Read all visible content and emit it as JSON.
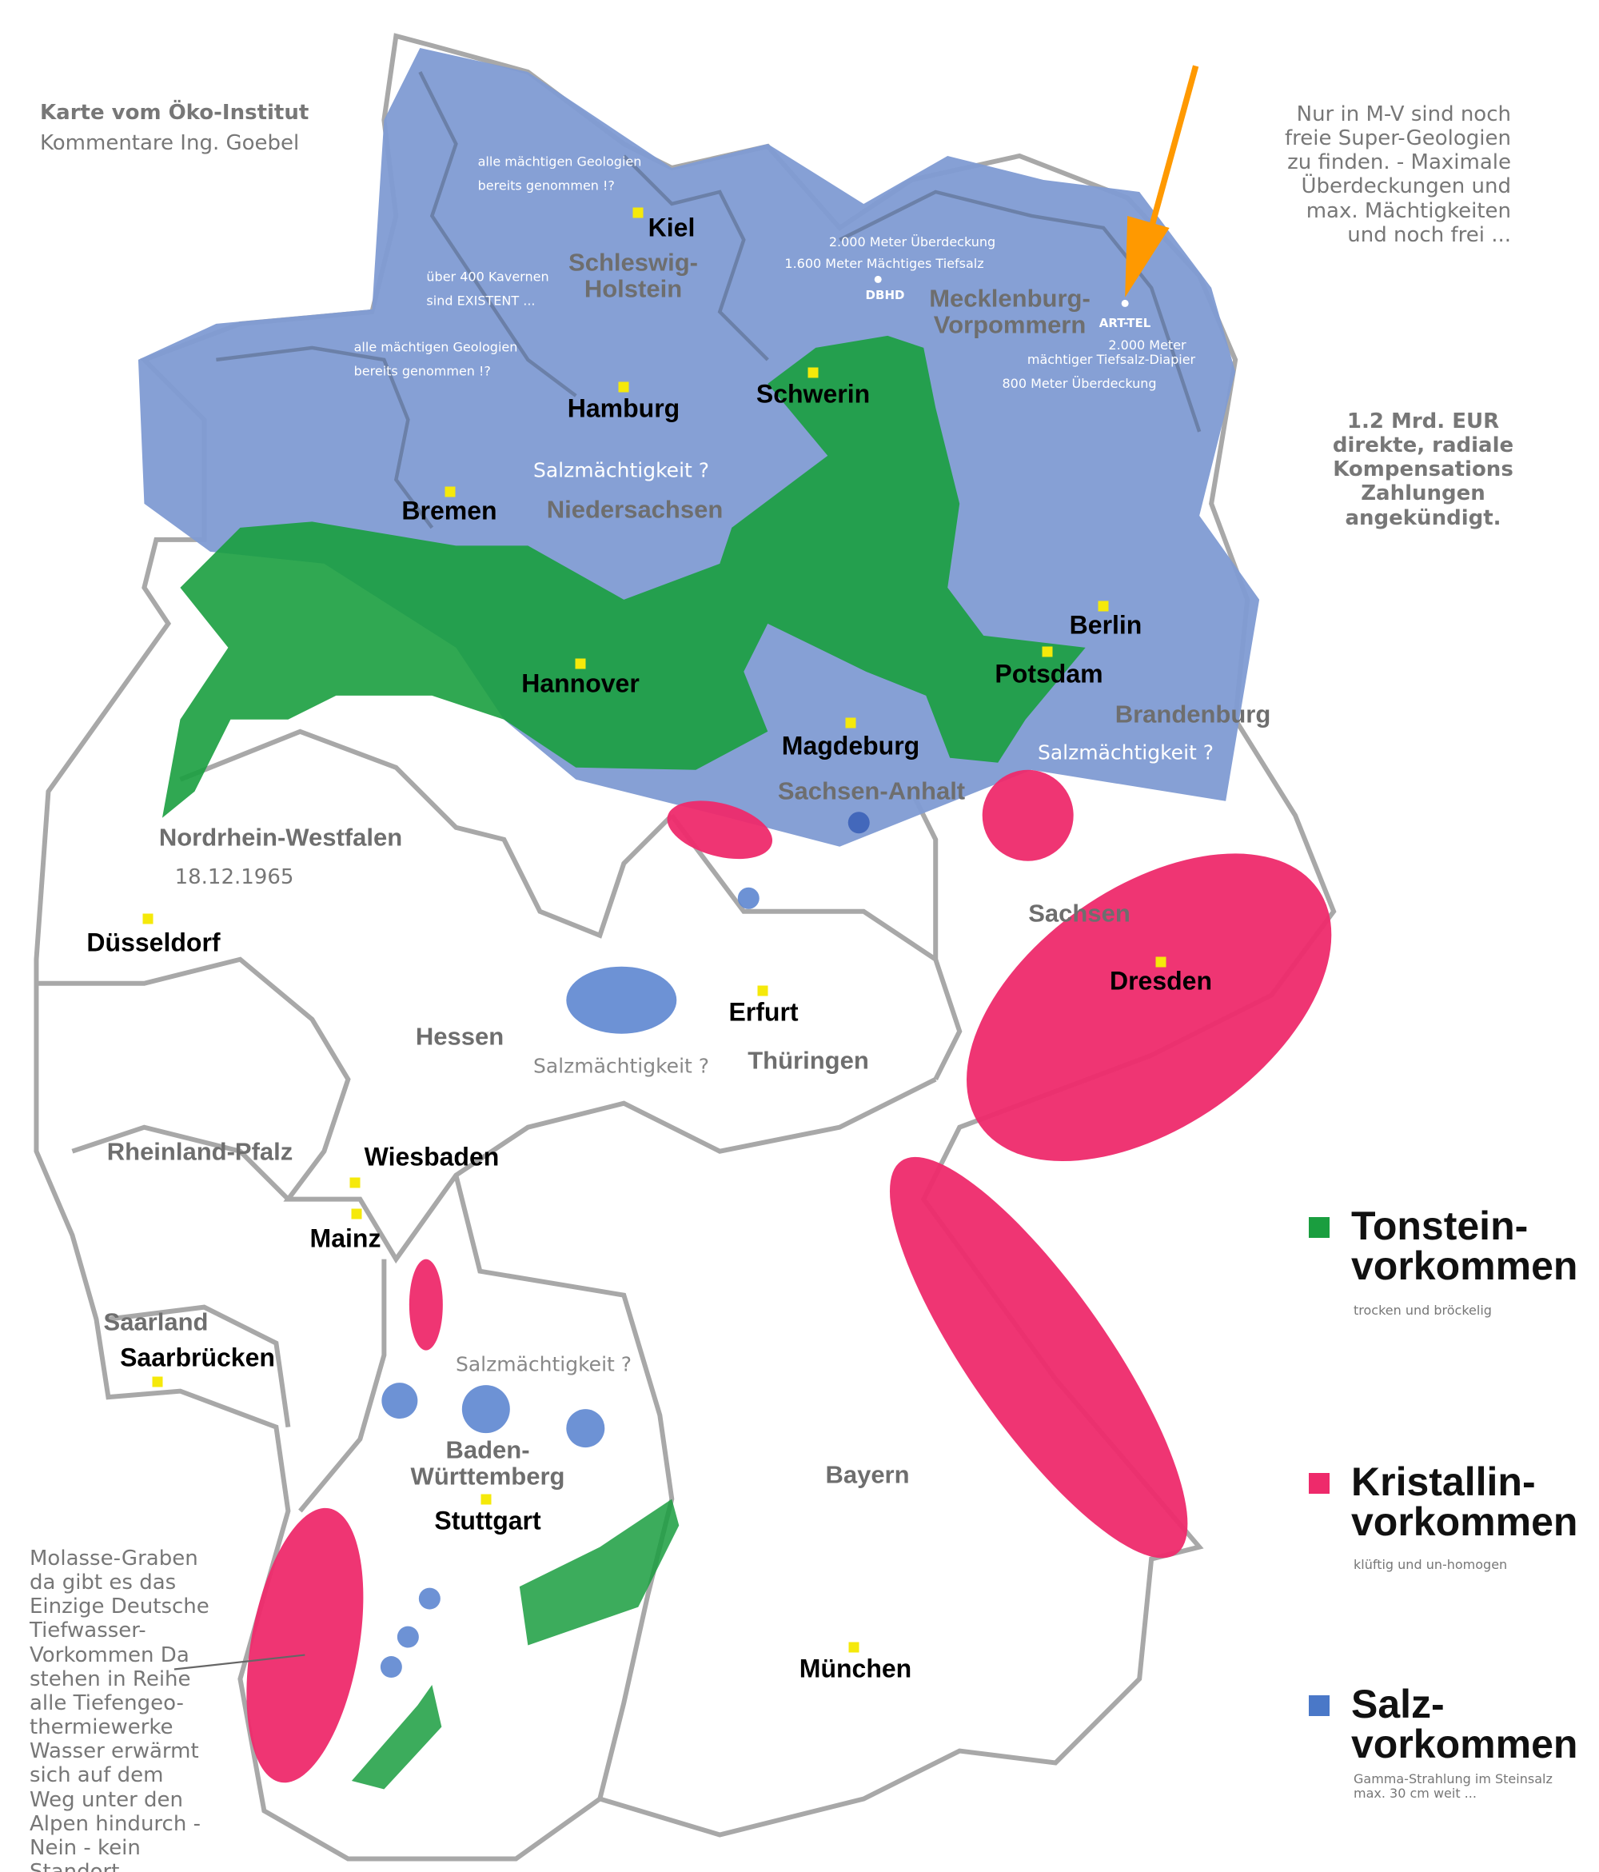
{
  "header": {
    "title": "Karte vom Öko-Institut",
    "subtitle": "Kommentare Ing. Goebel"
  },
  "side_notes": {
    "mv_note": "Nur in M-V sind noch freie Super-Geologien zu finden. - Maximale Überdeckungen und max. Mächtigkeiten und noch frei ...",
    "compensation": "1.2 Mrd. EUR direkte, radiale Kompensations Zahlungen angekündigt.",
    "nrw_date": "18.12.1965",
    "molasse": "Molasse-Graben da gibt es das Einzige Deutsche Tiefwasser-Vorkommen Da stehen in Reihe alle Tiefengeo-thermiewerke Wasser erwärmt sich auf dem Weg unter den Alpen hindurch - Nein - kein Standort"
  },
  "map_comments": {
    "sh_geologien_1": "alle mächtigen Geologien",
    "sh_geologien_2": "bereits genommen !?",
    "kavernen_1": "über 400 Kavernen",
    "kavernen_2": "sind EXISTENT ...",
    "ns_geologien_1": "alle mächtigen Geologien",
    "ns_geologien_2": "bereits genommen !?",
    "dbhd_1": "2.000 Meter Überdeckung",
    "dbhd_2": "1.600 Meter Mächtiges Tiefsalz",
    "dbhd_site": "DBHD",
    "arttel_site": "ART-TEL",
    "arttel_1": "2.000 Meter",
    "arttel_2": "mächtiger Tiefsalz-Diapier",
    "arttel_3": "800 Meter Überdeckung",
    "salz_q_ns": "Salzmächtigkeit ?",
    "salz_q_bb": "Salzmächtigkeit ?",
    "salz_q_he": "Salzmächtigkeit ?",
    "salz_q_bw": "Salzmächtigkeit ?"
  },
  "states": {
    "sh": "Schleswig-\nHolstein",
    "mv": "Mecklenburg-\nVorpommern",
    "ni": "Niedersachsen",
    "bb": "Brandenburg",
    "st": "Sachsen-Anhalt",
    "nw": "Nordrhein-Westfalen",
    "sn": "Sachsen",
    "he": "Hessen",
    "th": "Thüringen",
    "rp": "Rheinland-Pfalz",
    "sl": "Saarland",
    "bw": "Baden-\nWürttemberg",
    "by": "Bayern"
  },
  "cities": {
    "kiel": "Kiel",
    "hamburg": "Hamburg",
    "schwerin": "Schwerin",
    "bremen": "Bremen",
    "hannover": "Hannover",
    "berlin": "Berlin",
    "potsdam": "Potsdam",
    "magdeburg": "Magdeburg",
    "duesseldorf": "Düsseldorf",
    "erfurt": "Erfurt",
    "dresden": "Dresden",
    "wiesbaden": "Wiesbaden",
    "mainz": "Mainz",
    "saarbruecken": "Saarbrücken",
    "stuttgart": "Stuttgart",
    "muenchen": "München"
  },
  "legend": {
    "tonstein": {
      "title": "Tonstein-\nvorkommen",
      "note": "trocken und bröckelig",
      "color": "#1a9e3f"
    },
    "kristallin": {
      "title": "Kristallin-\nvorkommen",
      "note": "klüftig und un-homogen",
      "color": "#ee2a6b"
    },
    "salz": {
      "title": "Salz-\nvorkommen",
      "note": "Gamma-Strahlung im Steinsalz\nmax. 30 cm weit ...",
      "color": "#4a78c8"
    }
  },
  "colors": {
    "salt_region": "#7f9bd3",
    "clay": "#1a9e3f",
    "crystalline": "#ee2a6b",
    "salt_dome": "#5d86d0",
    "city_marker": "#f5e90a",
    "arrow": "#ff9900",
    "border": "#a8a8a8"
  },
  "icons": {
    "arrow": "orange-arrow-icon",
    "city": "yellow-square-marker"
  }
}
